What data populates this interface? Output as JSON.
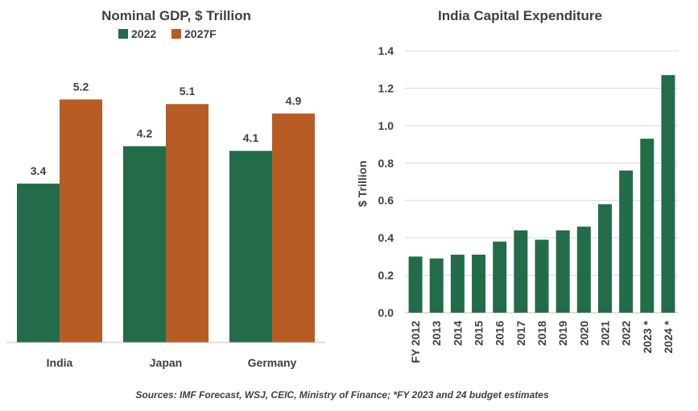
{
  "colors": {
    "green": "#236c4a",
    "orange": "#b85c25",
    "grid": "#d9d9d9",
    "axis": "#bfbfbf",
    "text": "#404040"
  },
  "footnote": "Sources: IMF Forecast, WSJ, CEIC, Ministry of Finance; *FY 2023  and 24 budget estimates",
  "chart_data": [
    {
      "type": "bar",
      "title": "Nominal GDP, $ Trillion",
      "categories": [
        "India",
        "Japan",
        "Germany"
      ],
      "series": [
        {
          "name": "2022",
          "values": [
            3.4,
            4.2,
            4.1
          ],
          "labels": [
            "3.4",
            "4.2",
            "4.1"
          ]
        },
        {
          "name": "2027F",
          "values": [
            5.2,
            5.1,
            4.9
          ],
          "labels": [
            "5.2",
            "5.1",
            "4.9"
          ]
        }
      ],
      "ylim": [
        0,
        5.8
      ],
      "legend": "top-center",
      "grid": false
    },
    {
      "type": "bar",
      "title": "India Capital Expenditure",
      "ylabel": "$ Trillion",
      "categories": [
        "FY 2012",
        "2013",
        "2014",
        "2015",
        "2016",
        "2017",
        "2018",
        "2019",
        "2020",
        "2021",
        "2022",
        "2023 *",
        "2024 *"
      ],
      "values": [
        0.3,
        0.29,
        0.31,
        0.31,
        0.38,
        0.44,
        0.39,
        0.44,
        0.46,
        0.58,
        0.76,
        0.93,
        1.27
      ],
      "ylim": [
        0,
        1.4
      ],
      "yticks": [
        "0.0",
        "0.2",
        "0.4",
        "0.6",
        "0.8",
        "1.0",
        "1.2",
        "1.4"
      ],
      "grid": true
    }
  ]
}
